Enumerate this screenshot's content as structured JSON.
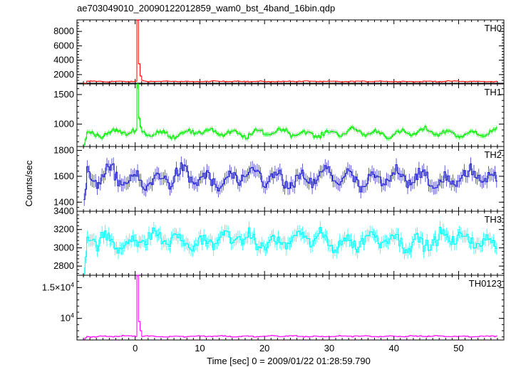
{
  "chart_data": {
    "type": "line",
    "title": "ae703049010_20090122012859_wam0_bst_4band_16bin.qdp",
    "xlabel": "Time [sec] 0 = 2009/01/22 01:28:59.790",
    "ylabel": "Counts/sec",
    "xlim": [
      -9,
      57
    ],
    "x_ticks": [
      0,
      10,
      20,
      30,
      40,
      50
    ],
    "x_tick_labels": [
      "0",
      "10",
      "20",
      "30",
      "40",
      "50"
    ],
    "x_data_range": [
      -8,
      56
    ],
    "x_bin_width": 0.25,
    "grid": false,
    "panels": [
      {
        "name": "TH0",
        "color": "#ff0000",
        "ylim": [
          800,
          9600
        ],
        "y_ticks": [
          2000,
          4000,
          6000,
          8000
        ],
        "y_tick_labels": [
          "2000",
          "4000",
          "6000",
          "8000"
        ],
        "baseline": 1050,
        "noise": 60,
        "osc_amp": 30,
        "start_value": 300,
        "spike": {
          "x": 0.2,
          "peak": 9600
        },
        "post_spike": [
          3500,
          1800,
          1200
        ]
      },
      {
        "name": "TH1",
        "color": "#00ee00",
        "ylim": [
          620,
          1680
        ],
        "y_ticks": [
          1000,
          1500
        ],
        "y_tick_labels": [
          "1000",
          "1500"
        ],
        "baseline": 850,
        "noise": 40,
        "osc_amp": 45,
        "start_value": 650,
        "spike": {
          "x": 0.2,
          "peak": 1680
        },
        "post_spike": [
          1100,
          950
        ]
      },
      {
        "name": "TH2",
        "color": "#2222cc",
        "ylim": [
          1330,
          1830
        ],
        "y_ticks": [
          1400,
          1600,
          1800
        ],
        "y_tick_labels": [
          "1400",
          "1600",
          "1800"
        ],
        "baseline": 1580,
        "noise": 55,
        "osc_amp": 50,
        "start_value": 1420,
        "spike": null,
        "post_spike": []
      },
      {
        "name": "TH3",
        "color": "#00ffff",
        "ylim": [
          2700,
          3400
        ],
        "y_ticks": [
          2800,
          3000,
          3200,
          3400
        ],
        "y_tick_labels": [
          "2800",
          "3000",
          "3200",
          "3400"
        ],
        "baseline": 3080,
        "noise": 75,
        "osc_amp": 60,
        "start_value": 2720,
        "spike": null,
        "post_spike": []
      },
      {
        "name": "TH0123",
        "color": "#ff00ff",
        "ylim": [
          6500,
          17000
        ],
        "y_ticks": [
          10000,
          15000
        ],
        "y_tick_labels": [
          "10^4",
          "1.5×10^4"
        ],
        "baseline": 7100,
        "noise": 90,
        "osc_amp": 60,
        "start_value": 6600,
        "spike": {
          "x": 0.2,
          "peak": 17000
        },
        "post_spike": [
          9500,
          8000
        ]
      }
    ]
  }
}
